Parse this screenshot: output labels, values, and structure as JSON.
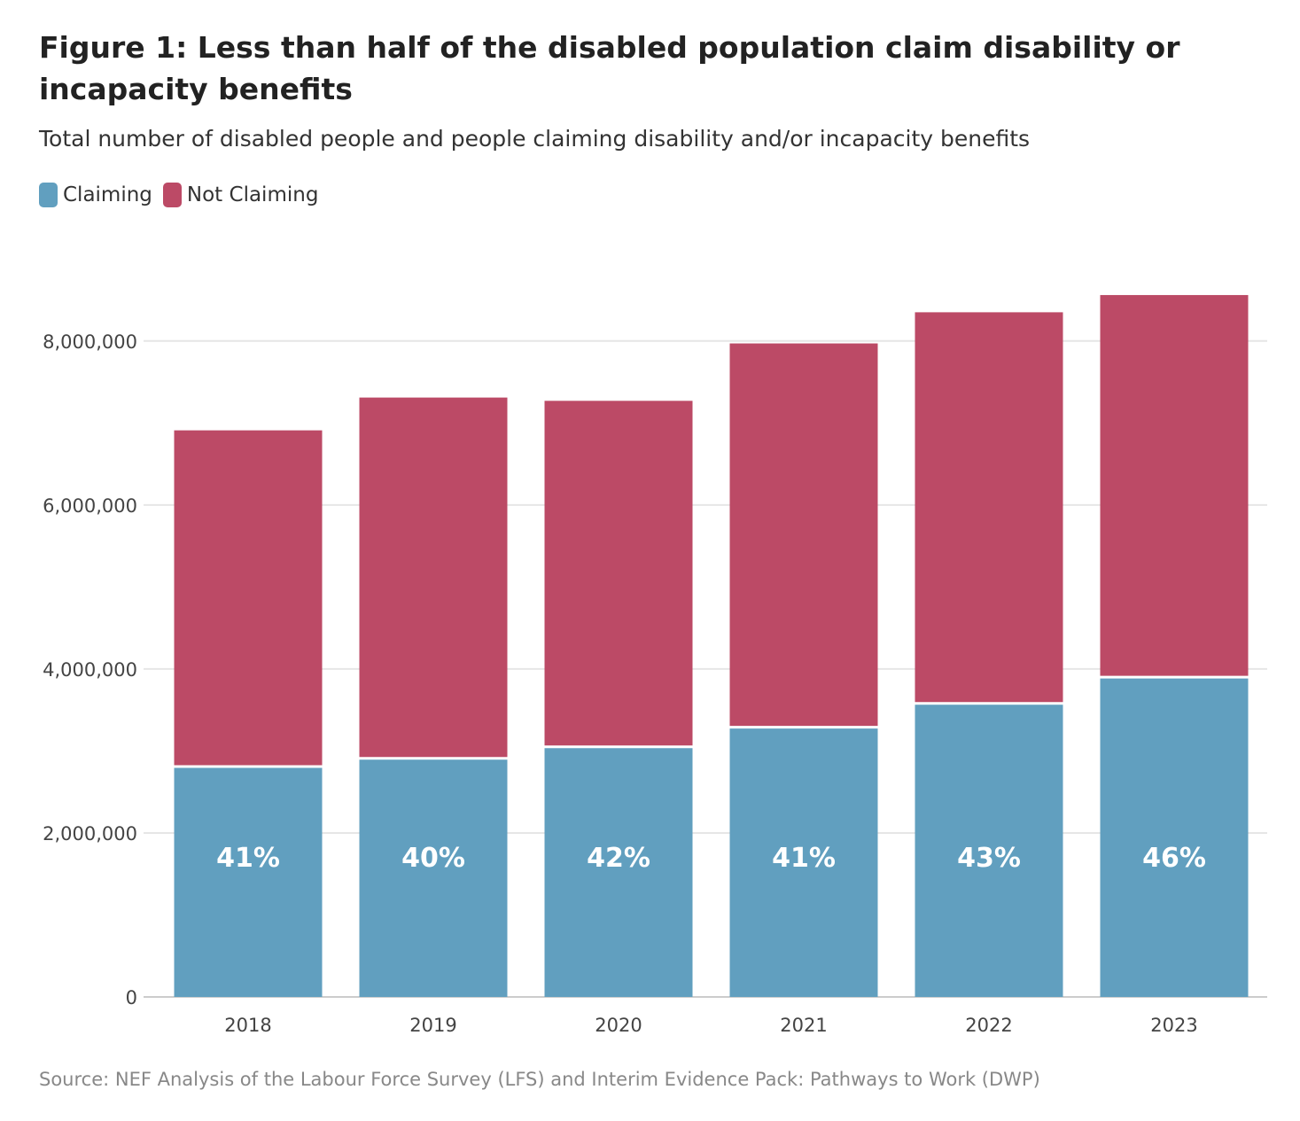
{
  "title": "Figure 1: Less than half of the disabled population claim disability or incapacity benefits",
  "subtitle": "Total number of disabled people and people claiming disability and/or incapacity benefits",
  "source": "Source: NEF Analysis of the Labour Force Survey (LFS) and Interim Evidence Pack: Pathways to Work (DWP)",
  "legend": [
    {
      "label": "Claiming",
      "color": "#619fbf"
    },
    {
      "label": "Not Claiming",
      "color": "#bc4a66"
    }
  ],
  "chart_data": {
    "type": "bar",
    "stacked": true,
    "title": "Figure 1: Less than half of the disabled population claim disability or incapacity benefits",
    "subtitle": "Total number of disabled people and people claiming disability and/or incapacity benefits",
    "xlabel": "",
    "ylabel": "",
    "categories": [
      "2018",
      "2019",
      "2020",
      "2021",
      "2022",
      "2023"
    ],
    "series": [
      {
        "name": "Claiming",
        "color": "#619fbf",
        "values": [
          2810000,
          2910000,
          3050000,
          3290000,
          3580000,
          3900000
        ]
      },
      {
        "name": "Not Claiming",
        "color": "#bc4a66",
        "values": [
          4100000,
          4400000,
          4220000,
          4680000,
          4770000,
          4660000
        ]
      }
    ],
    "data_labels": [
      "41%",
      "40%",
      "42%",
      "41%",
      "43%",
      "46%"
    ],
    "ylim": [
      0,
      8700000
    ],
    "yticks": [
      0,
      2000000,
      4000000,
      6000000,
      8000000
    ],
    "ytick_labels": [
      "0",
      "2,000,000",
      "4,000,000",
      "6,000,000",
      "8,000,000"
    ],
    "grid": true,
    "legend_position": "top-left"
  }
}
